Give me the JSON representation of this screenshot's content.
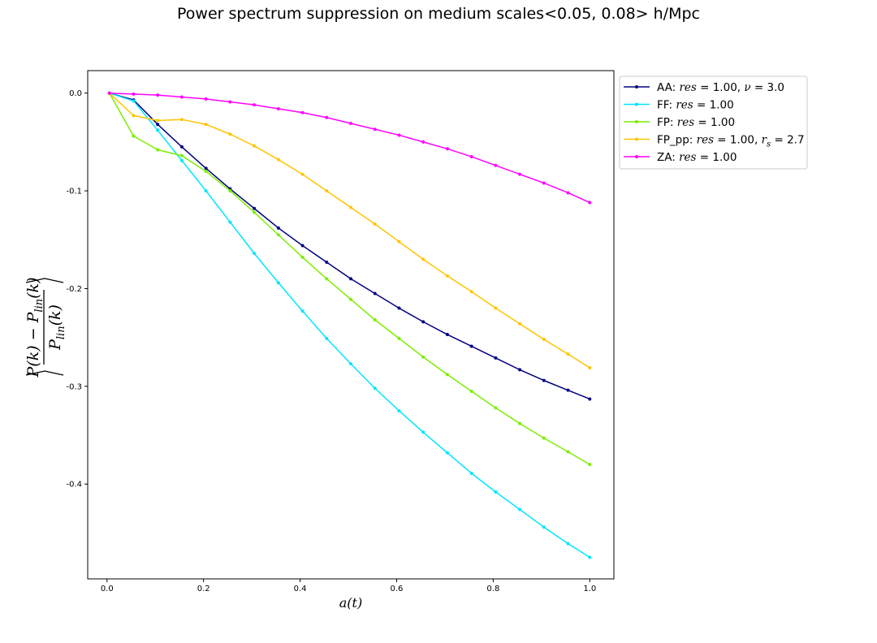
{
  "chart_data": {
    "type": "line",
    "title": "Power spectrum suppression on medium scales<0.05, 0.08> h/Mpc",
    "xlabel": "a(t)",
    "ylabel": "⟨(P(k) − P_lin(k)) / P_lin(k)⟩",
    "xlim": [
      -0.04,
      1.05
    ],
    "ylim": [
      -0.497,
      0.023
    ],
    "x_ticks": [
      0.0,
      0.2,
      0.4,
      0.6,
      0.8,
      1.0
    ],
    "x_tick_labels": [
      "0.0",
      "0.2",
      "0.4",
      "0.6",
      "0.8",
      "1.0"
    ],
    "y_ticks": [
      0.0,
      -0.1,
      -0.2,
      -0.3,
      -0.4
    ],
    "y_tick_labels": [
      "0.0",
      "-0.1",
      "-0.2",
      "-0.3",
      "-0.4"
    ],
    "grid": false,
    "legend_position": "outside-right-top",
    "x": [
      0.005,
      0.055,
      0.105,
      0.155,
      0.205,
      0.255,
      0.305,
      0.355,
      0.405,
      0.455,
      0.505,
      0.555,
      0.605,
      0.655,
      0.705,
      0.755,
      0.805,
      0.855,
      0.905,
      0.955,
      1.0
    ],
    "series": [
      {
        "name": "AA: res = 1.00, ν = 3.0",
        "legend": {
          "prefix": "AA: ",
          "math": [
            [
              "it",
              "res"
            ],
            [
              "",
              " = 1.00, "
            ],
            [
              "it",
              "ν"
            ],
            [
              "",
              " = 3.0"
            ]
          ]
        },
        "color": "#00007f",
        "values": [
          0.0,
          -0.007,
          -0.032,
          -0.055,
          -0.077,
          -0.098,
          -0.118,
          -0.138,
          -0.156,
          -0.173,
          -0.19,
          -0.205,
          -0.22,
          -0.234,
          -0.247,
          -0.259,
          -0.271,
          -0.283,
          -0.294,
          -0.304,
          -0.313
        ]
      },
      {
        "name": "FF: res = 1.00",
        "legend": {
          "prefix": "FF: ",
          "math": [
            [
              "it",
              "res"
            ],
            [
              "",
              " = 1.00"
            ]
          ]
        },
        "color": "#00e5ff",
        "values": [
          0.0,
          -0.008,
          -0.038,
          -0.069,
          -0.1,
          -0.132,
          -0.164,
          -0.194,
          -0.223,
          -0.251,
          -0.277,
          -0.302,
          -0.325,
          -0.347,
          -0.368,
          -0.389,
          -0.408,
          -0.426,
          -0.444,
          -0.461,
          -0.475
        ]
      },
      {
        "name": "FP: res = 1.00",
        "legend": {
          "prefix": "FP: ",
          "math": [
            [
              "it",
              "res"
            ],
            [
              "",
              " = 1.00"
            ]
          ]
        },
        "color": "#7cee00",
        "values": [
          0.0,
          -0.044,
          -0.058,
          -0.064,
          -0.08,
          -0.1,
          -0.122,
          -0.145,
          -0.168,
          -0.19,
          -0.211,
          -0.232,
          -0.251,
          -0.27,
          -0.288,
          -0.305,
          -0.322,
          -0.338,
          -0.353,
          -0.367,
          -0.38
        ]
      },
      {
        "name": "FP_pp: res = 1.00, r_s = 2.7",
        "legend": {
          "prefix": "FP_pp: ",
          "math": [
            [
              "it",
              "res"
            ],
            [
              "",
              " = 1.00, "
            ],
            [
              "it",
              "r"
            ],
            [
              "sub",
              "s"
            ],
            [
              "",
              " = 2.7"
            ]
          ]
        },
        "color": "#ffc400",
        "values": [
          0.0,
          -0.023,
          -0.028,
          -0.027,
          -0.032,
          -0.042,
          -0.054,
          -0.068,
          -0.083,
          -0.1,
          -0.117,
          -0.134,
          -0.152,
          -0.17,
          -0.187,
          -0.203,
          -0.22,
          -0.236,
          -0.252,
          -0.267,
          -0.281
        ]
      },
      {
        "name": "ZA: res = 1.00",
        "legend": {
          "prefix": "ZA: ",
          "math": [
            [
              "it",
              "res"
            ],
            [
              "",
              " = 1.00"
            ]
          ]
        },
        "color": "#ff00ff",
        "values": [
          0.0,
          -0.001,
          -0.002,
          -0.004,
          -0.006,
          -0.009,
          -0.012,
          -0.016,
          -0.02,
          -0.025,
          -0.031,
          -0.037,
          -0.043,
          -0.05,
          -0.057,
          -0.065,
          -0.074,
          -0.083,
          -0.092,
          -0.102,
          -0.112
        ]
      }
    ]
  }
}
